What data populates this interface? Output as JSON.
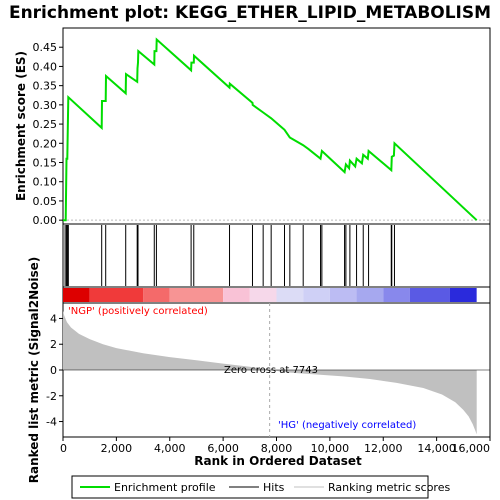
{
  "title": "Enrichment plot: KEGG_ETHER_LIPID_METABOLISM",
  "colors": {
    "enrichment_line": "#00dd00",
    "hits": "#000000",
    "metric_fill": "#c0c0c0",
    "positive_label": "#ff0000",
    "negative_label": "#0000ff",
    "zero_line": "#aaaaaa"
  },
  "chart_data": [
    {
      "type": "line",
      "panel": "enrichment-score",
      "ylabel": "Enrichment score (ES)",
      "ylim": [
        -0.01,
        0.5
      ],
      "yticks": [
        0.0,
        0.05,
        0.1,
        0.15,
        0.2,
        0.25,
        0.3,
        0.35,
        0.4,
        0.45
      ],
      "ytick_labels": [
        "0.00",
        "0.05",
        "0.10",
        "0.15",
        "0.20",
        "0.25",
        "0.30",
        "0.35",
        "0.40",
        "0.45"
      ],
      "xlim": [
        0,
        16000
      ],
      "series": [
        {
          "x": [
            0,
            100,
            130,
            160,
            200,
            1450,
            1460,
            1600,
            1610,
            2350,
            2360,
            2780,
            2790,
            2810,
            2820,
            3420,
            3430,
            3500,
            3510,
            4800,
            4810,
            4900,
            4910,
            6240,
            6250,
            7100,
            7110,
            7500,
            7800,
            8300,
            8500,
            9000,
            9200,
            9650,
            9700,
            10550,
            10600,
            10720,
            10750,
            10950,
            11000,
            11200,
            11250,
            11420,
            11450,
            12300,
            12320,
            12400,
            12420,
            15500
          ],
          "y": [
            0.0,
            0.0,
            0.16,
            0.16,
            0.32,
            0.24,
            0.31,
            0.31,
            0.375,
            0.33,
            0.38,
            0.36,
            0.395,
            0.41,
            0.44,
            0.405,
            0.44,
            0.44,
            0.47,
            0.39,
            0.41,
            0.41,
            0.428,
            0.345,
            0.355,
            0.305,
            0.3,
            0.28,
            0.265,
            0.235,
            0.215,
            0.195,
            0.185,
            0.16,
            0.18,
            0.125,
            0.145,
            0.135,
            0.155,
            0.14,
            0.16,
            0.148,
            0.17,
            0.16,
            0.18,
            0.13,
            0.165,
            0.168,
            0.2,
            0.0
          ]
        }
      ]
    },
    {
      "type": "scatter",
      "panel": "hits",
      "x": [
        80,
        130,
        170,
        200,
        1450,
        1600,
        2350,
        2780,
        2810,
        3420,
        3500,
        4800,
        4900,
        6240,
        7100,
        7500,
        7800,
        8300,
        8500,
        9000,
        9650,
        9700,
        10550,
        10600,
        10750,
        11000,
        11250,
        11450,
        12300,
        12320,
        12420
      ]
    },
    {
      "type": "heatmap",
      "panel": "rank-colorbar",
      "segments": [
        {
          "x0": 0,
          "x1": 1000,
          "color": "#dd0000"
        },
        {
          "x0": 1000,
          "x1": 3000,
          "color": "#f03a3a"
        },
        {
          "x0": 3000,
          "x1": 4000,
          "color": "#f46a6a"
        },
        {
          "x0": 4000,
          "x1": 6000,
          "color": "#f79494"
        },
        {
          "x0": 6000,
          "x1": 7000,
          "color": "#f9c2d6"
        },
        {
          "x0": 7000,
          "x1": 8000,
          "color": "#f6d8ea"
        },
        {
          "x0": 8000,
          "x1": 9000,
          "color": "#dcdcf6"
        },
        {
          "x0": 9000,
          "x1": 10000,
          "color": "#cfd0f6"
        },
        {
          "x0": 10000,
          "x1": 11000,
          "color": "#bcbcf3"
        },
        {
          "x0": 11000,
          "x1": 12000,
          "color": "#a6a8ef"
        },
        {
          "x0": 12000,
          "x1": 13000,
          "color": "#8888ec"
        },
        {
          "x0": 13000,
          "x1": 14500,
          "color": "#5a5ae4"
        },
        {
          "x0": 14500,
          "x1": 15500,
          "color": "#2a2adc"
        }
      ]
    },
    {
      "type": "area",
      "panel": "ranked-metric",
      "ylabel": "Ranked list metric (Signal2Noise)",
      "xlabel": "Rank in Ordered Dataset",
      "ylim": [
        -5.2,
        5.2
      ],
      "yticks": [
        -4,
        -2,
        0,
        2,
        4
      ],
      "ytick_labels": [
        "-4",
        "-2",
        "0",
        "2",
        "4"
      ],
      "xlim": [
        0,
        16000
      ],
      "xticks": [
        0,
        2000,
        4000,
        6000,
        8000,
        10000,
        12000,
        14000,
        16000
      ],
      "xtick_labels": [
        "0",
        "2,000",
        "4,000",
        "6,000",
        "8,000",
        "10,000",
        "12,000",
        "14,000",
        "16,000"
      ],
      "x": [
        0,
        50,
        150,
        300,
        600,
        1000,
        1500,
        2000,
        3000,
        4000,
        5000,
        6000,
        7000,
        7743,
        8500,
        9500,
        10500,
        11500,
        12500,
        13500,
        14200,
        14700,
        15000,
        15200,
        15350,
        15450,
        15500
      ],
      "y": [
        4.6,
        4.2,
        3.7,
        3.3,
        2.8,
        2.4,
        2.0,
        1.7,
        1.3,
        1.0,
        0.75,
        0.5,
        0.25,
        0.0,
        -0.2,
        -0.35,
        -0.5,
        -0.7,
        -1.0,
        -1.4,
        -1.9,
        -2.5,
        -3.1,
        -3.6,
        -4.2,
        -4.7,
        -5.0
      ],
      "zero_cross": 7743,
      "annotations": {
        "zero_cross": "Zero cross at 7743",
        "positive": "'NGP' (positively correlated)",
        "negative": "'HG' (negatively correlated)"
      }
    }
  ],
  "legend": {
    "items": [
      {
        "label": "Enrichment profile",
        "color": "#00dd00"
      },
      {
        "label": "Hits",
        "color": "#000000"
      },
      {
        "label": "Ranking metric scores",
        "color": "#c0c0c0"
      }
    ]
  }
}
